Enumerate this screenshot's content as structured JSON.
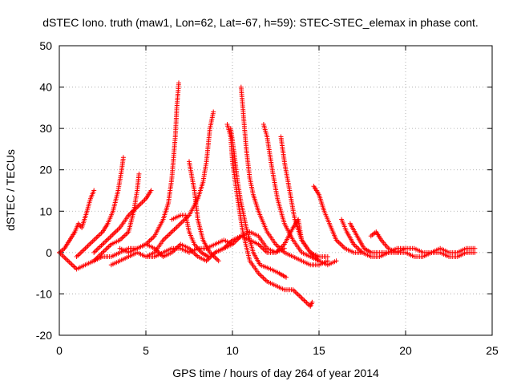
{
  "chart_data": {
    "type": "scatter",
    "title": "dSTEC Iono. truth (maw1, Lon=62, Lat=-67, h=59): STEC-STEC_elemax in phase cont.",
    "xlabel": "GPS time / hours of day 264 of year 2014",
    "ylabel": "dSTEC  / TECUs",
    "xlim": [
      0,
      25
    ],
    "ylim": [
      -20,
      50
    ],
    "xticks": [
      0,
      5,
      10,
      15,
      20,
      25
    ],
    "yticks": [
      -20,
      -10,
      0,
      10,
      20,
      30,
      40,
      50
    ],
    "grid": true,
    "marker": "+",
    "color": "#ff0000",
    "tracks": [
      [
        [
          0.0,
          0
        ],
        [
          0.3,
          1
        ],
        [
          0.6,
          3
        ],
        [
          0.9,
          5
        ],
        [
          1.1,
          7
        ],
        [
          1.3,
          6
        ],
        [
          1.6,
          10
        ],
        [
          1.8,
          13
        ],
        [
          2.0,
          15
        ]
      ],
      [
        [
          1.0,
          -1
        ],
        [
          1.5,
          1
        ],
        [
          2.0,
          3
        ],
        [
          2.5,
          5
        ],
        [
          2.8,
          7
        ],
        [
          3.1,
          10
        ],
        [
          3.4,
          15
        ],
        [
          3.6,
          20
        ],
        [
          3.7,
          23
        ]
      ],
      [
        [
          2.0,
          -2
        ],
        [
          2.5,
          0
        ],
        [
          3.0,
          2
        ],
        [
          3.5,
          3
        ],
        [
          4.0,
          5
        ],
        [
          4.3,
          10
        ],
        [
          4.5,
          15
        ],
        [
          4.6,
          19
        ]
      ],
      [
        [
          3.5,
          1
        ],
        [
          4.0,
          0
        ],
        [
          4.5,
          1
        ],
        [
          5.0,
          2
        ],
        [
          5.5,
          4
        ],
        [
          6.0,
          8
        ],
        [
          6.3,
          12
        ],
        [
          6.5,
          18
        ],
        [
          6.7,
          28
        ],
        [
          6.8,
          36
        ],
        [
          6.9,
          41
        ]
      ],
      [
        [
          5.0,
          -1
        ],
        [
          5.5,
          0
        ],
        [
          6.0,
          3
        ],
        [
          6.5,
          5
        ],
        [
          7.0,
          7
        ],
        [
          7.5,
          9
        ],
        [
          8.0,
          13
        ],
        [
          8.3,
          17
        ],
        [
          8.5,
          22
        ],
        [
          8.7,
          30
        ],
        [
          8.9,
          34
        ]
      ],
      [
        [
          6.5,
          8
        ],
        [
          7.0,
          9
        ],
        [
          7.3,
          9
        ],
        [
          7.5,
          5
        ],
        [
          7.8,
          2
        ],
        [
          8.2,
          0
        ],
        [
          8.6,
          -1
        ]
      ],
      [
        [
          7.5,
          22
        ],
        [
          7.8,
          15
        ],
        [
          8.0,
          8
        ],
        [
          8.3,
          3
        ],
        [
          8.7,
          0
        ],
        [
          9.2,
          -2
        ]
      ],
      [
        [
          9.7,
          31
        ],
        [
          9.9,
          28
        ],
        [
          10.0,
          22
        ],
        [
          10.3,
          13
        ],
        [
          10.6,
          5
        ],
        [
          11.0,
          -2
        ],
        [
          11.5,
          -5
        ],
        [
          12.0,
          -7
        ],
        [
          12.5,
          -8
        ],
        [
          13.0,
          -9
        ],
        [
          13.5,
          -9
        ],
        [
          14.0,
          -11
        ],
        [
          14.5,
          -13
        ],
        [
          14.6,
          -12
        ]
      ],
      [
        [
          9.9,
          30
        ],
        [
          10.1,
          24
        ],
        [
          10.3,
          17
        ],
        [
          10.5,
          12
        ],
        [
          10.8,
          6
        ],
        [
          11.2,
          0
        ],
        [
          11.6,
          -3
        ],
        [
          12.2,
          -4
        ],
        [
          12.7,
          -5
        ],
        [
          13.1,
          -6
        ]
      ],
      [
        [
          10.5,
          40
        ],
        [
          10.6,
          35
        ],
        [
          10.8,
          25
        ],
        [
          11.0,
          18
        ],
        [
          11.2,
          14
        ],
        [
          11.5,
          10
        ],
        [
          12.0,
          5
        ],
        [
          12.5,
          2
        ],
        [
          13.0,
          0
        ],
        [
          13.5,
          -1
        ],
        [
          14.0,
          -2
        ],
        [
          14.5,
          -3
        ],
        [
          15.0,
          -3
        ],
        [
          15.5,
          -2
        ]
      ],
      [
        [
          11.8,
          31
        ],
        [
          12.0,
          28
        ],
        [
          12.3,
          20
        ],
        [
          12.6,
          13
        ],
        [
          13.0,
          7
        ],
        [
          13.5,
          3
        ],
        [
          14.0,
          0
        ],
        [
          14.5,
          -1
        ],
        [
          15.0,
          -2
        ],
        [
          15.5,
          -3
        ],
        [
          16.0,
          -2
        ]
      ],
      [
        [
          12.8,
          28
        ],
        [
          13.0,
          22
        ],
        [
          13.3,
          15
        ],
        [
          13.6,
          8
        ],
        [
          14.0,
          3
        ],
        [
          14.5,
          0
        ],
        [
          15.0,
          -1
        ],
        [
          15.5,
          -1
        ]
      ],
      [
        [
          14.7,
          16
        ],
        [
          15.0,
          14
        ],
        [
          15.3,
          10
        ],
        [
          15.6,
          7
        ],
        [
          16.0,
          3
        ],
        [
          16.5,
          1
        ],
        [
          17.0,
          0
        ],
        [
          17.5,
          0
        ]
      ],
      [
        [
          16.3,
          8
        ],
        [
          16.6,
          5
        ],
        [
          17.0,
          2
        ],
        [
          17.5,
          0
        ],
        [
          18.0,
          -1
        ],
        [
          18.5,
          -1
        ],
        [
          19.0,
          0
        ],
        [
          19.5,
          1
        ],
        [
          20.0,
          1
        ]
      ],
      [
        [
          16.8,
          7
        ],
        [
          17.2,
          4
        ],
        [
          17.6,
          1
        ],
        [
          18.0,
          0
        ],
        [
          18.5,
          0
        ],
        [
          19.0,
          0
        ],
        [
          19.5,
          0
        ],
        [
          20.0,
          1
        ],
        [
          20.5,
          1
        ],
        [
          21.0,
          0
        ],
        [
          21.5,
          0
        ],
        [
          22.0,
          1
        ],
        [
          22.5,
          0
        ],
        [
          23.0,
          0
        ],
        [
          23.5,
          1
        ],
        [
          24.0,
          1
        ]
      ],
      [
        [
          18.0,
          4
        ],
        [
          18.3,
          5
        ],
        [
          18.6,
          3
        ],
        [
          19.0,
          1
        ],
        [
          19.5,
          0
        ],
        [
          20.0,
          0
        ],
        [
          20.5,
          -1
        ],
        [
          21.0,
          -1
        ],
        [
          21.5,
          0
        ],
        [
          22.0,
          0
        ],
        [
          22.5,
          -1
        ],
        [
          23.0,
          -1
        ],
        [
          23.5,
          0
        ],
        [
          24.0,
          0
        ]
      ],
      [
        [
          0.0,
          0
        ],
        [
          0.5,
          -2
        ],
        [
          1.0,
          -4
        ],
        [
          1.5,
          -3
        ],
        [
          2.0,
          -2
        ],
        [
          2.5,
          -1
        ],
        [
          3.0,
          -1
        ],
        [
          3.5,
          0
        ],
        [
          4.0,
          1
        ],
        [
          4.5,
          1
        ],
        [
          5.0,
          2
        ],
        [
          5.5,
          1
        ],
        [
          6.0,
          -1
        ],
        [
          6.5,
          0
        ],
        [
          7.0,
          2
        ],
        [
          7.5,
          1
        ],
        [
          8.0,
          -1
        ],
        [
          8.5,
          -2
        ],
        [
          9.0,
          0
        ],
        [
          9.5,
          1
        ],
        [
          10.0,
          3
        ],
        [
          10.5,
          4
        ],
        [
          11.0,
          3
        ],
        [
          11.5,
          2
        ],
        [
          12.0,
          0
        ],
        [
          12.5,
          0
        ],
        [
          13.0,
          1
        ]
      ],
      [
        [
          3.0,
          -3
        ],
        [
          3.5,
          -2
        ],
        [
          4.0,
          -1
        ],
        [
          4.5,
          0
        ],
        [
          5.0,
          -1
        ],
        [
          5.5,
          -1
        ],
        [
          6.0,
          0
        ],
        [
          6.5,
          1
        ],
        [
          7.0,
          1
        ],
        [
          7.5,
          0
        ],
        [
          8.0,
          1
        ],
        [
          8.5,
          1
        ],
        [
          9.0,
          2
        ],
        [
          9.5,
          3
        ],
        [
          10.0,
          2
        ]
      ],
      [
        [
          9.0,
          0
        ],
        [
          9.5,
          1
        ],
        [
          10.0,
          2
        ],
        [
          10.5,
          4
        ],
        [
          11.0,
          5
        ],
        [
          11.5,
          4
        ],
        [
          12.0,
          1
        ],
        [
          12.5,
          0
        ],
        [
          13.0,
          2
        ],
        [
          13.5,
          6
        ],
        [
          13.8,
          8
        ],
        [
          14.0,
          3
        ],
        [
          14.5,
          0
        ],
        [
          15.0,
          -2
        ]
      ],
      [
        [
          2.0,
          0
        ],
        [
          2.5,
          2
        ],
        [
          3.0,
          4
        ],
        [
          3.5,
          6
        ],
        [
          4.0,
          9
        ],
        [
          4.5,
          11
        ],
        [
          5.0,
          13
        ],
        [
          5.3,
          15
        ]
      ]
    ]
  }
}
